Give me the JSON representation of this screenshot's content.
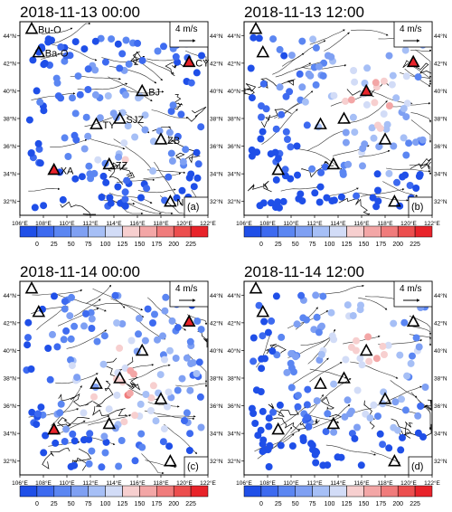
{
  "panels": [
    {
      "title": "2018-11-13 00:00",
      "label": "(a)",
      "show_site_labels": true,
      "high_sites": [
        "XA",
        "CY"
      ]
    },
    {
      "title": "2018-11-13 12:00",
      "label": "(b)",
      "show_site_labels": false,
      "high_sites": [
        "BJ",
        "CY"
      ]
    },
    {
      "title": "2018-11-14 00:00",
      "label": "(c)",
      "show_site_labels": false,
      "high_sites": [
        "XA",
        "CY"
      ]
    },
    {
      "title": "2018-11-14 12:00",
      "label": "(d)",
      "show_site_labels": false,
      "high_sites": []
    }
  ],
  "map": {
    "lon_range": [
      106,
      122
    ],
    "lat_range": [
      31,
      45
    ],
    "lon_ticks": [
      "106°E",
      "108°E",
      "110°E",
      "112°E",
      "114°E",
      "116°E",
      "118°E",
      "120°E",
      "122°E"
    ],
    "lat_ticks": [
      "32°N",
      "34°N",
      "36°N",
      "38°N",
      "40°N",
      "42°N",
      "44°N"
    ],
    "reference_vector": "4 m/s"
  },
  "sites": [
    {
      "name": "Bu-O",
      "lon": 107.0,
      "lat": 44.5
    },
    {
      "name": "Ba-O",
      "lon": 107.6,
      "lat": 42.8
    },
    {
      "name": "CY",
      "lon": 120.4,
      "lat": 42.1
    },
    {
      "name": "BJ",
      "lon": 116.4,
      "lat": 40.0
    },
    {
      "name": "SJZ",
      "lon": 114.5,
      "lat": 38.0
    },
    {
      "name": "TY",
      "lon": 112.5,
      "lat": 37.6
    },
    {
      "name": "ZB",
      "lon": 118.0,
      "lat": 36.5
    },
    {
      "name": "ZZ",
      "lon": 113.6,
      "lat": 34.7
    },
    {
      "name": "XA",
      "lon": 108.9,
      "lat": 34.3
    },
    {
      "name": "NJ",
      "lon": 118.8,
      "lat": 32.0
    }
  ],
  "colorbar": {
    "labels": [
      "0",
      "25",
      "50",
      "75",
      "100",
      "125",
      "150",
      "175",
      "200",
      "225"
    ],
    "colors": [
      "#1f4fe8",
      "#3d6af0",
      "#5b86f2",
      "#7fa0f3",
      "#a6bff6",
      "#d2dcf7",
      "#f7cfcf",
      "#f3a6a6",
      "#f07b7b",
      "#ec4e4e",
      "#e8232a"
    ]
  }
}
